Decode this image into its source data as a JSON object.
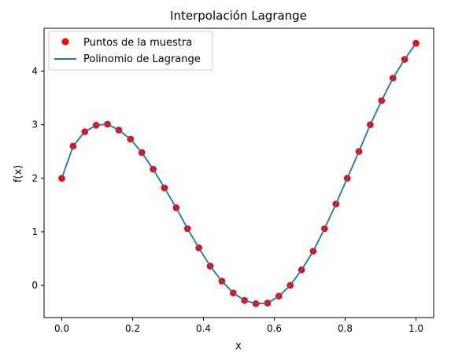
{
  "chart_data": {
    "type": "line",
    "title": "Interpolación Lagrange",
    "xlabel": "x",
    "ylabel": "f(x)",
    "xlim": [
      -0.05,
      1.05
    ],
    "ylim": [
      -0.6,
      4.8
    ],
    "xticks": [
      0.0,
      0.2,
      0.4,
      0.6,
      0.8,
      1.0
    ],
    "xtick_labels": [
      "0.0",
      "0.2",
      "0.4",
      "0.6",
      "0.8",
      "1.0"
    ],
    "yticks": [
      0,
      1,
      2,
      3,
      4
    ],
    "ytick_labels": [
      "0",
      "1",
      "2",
      "3",
      "4"
    ],
    "grid": false,
    "legend_position": "top-left",
    "legend": [
      "Puntos de la muestra",
      "Polinomio de Lagrange"
    ],
    "series": [
      {
        "name": "Puntos de la muestra",
        "kind": "scatter",
        "color": "#ff0000",
        "x": [
          0.0,
          0.032,
          0.065,
          0.097,
          0.129,
          0.161,
          0.194,
          0.226,
          0.258,
          0.29,
          0.323,
          0.355,
          0.387,
          0.419,
          0.452,
          0.484,
          0.516,
          0.548,
          0.581,
          0.613,
          0.645,
          0.677,
          0.71,
          0.742,
          0.774,
          0.806,
          0.839,
          0.871,
          0.903,
          0.935,
          0.968,
          1.0
        ],
        "y": [
          2.0,
          2.6,
          2.87,
          2.99,
          3.01,
          2.9,
          2.73,
          2.48,
          2.17,
          1.82,
          1.45,
          1.06,
          0.7,
          0.36,
          0.08,
          -0.14,
          -0.28,
          -0.34,
          -0.33,
          -0.2,
          0.0,
          0.29,
          0.64,
          1.06,
          1.52,
          2.0,
          2.5,
          3.0,
          3.45,
          3.87,
          4.22,
          4.52
        ]
      },
      {
        "name": "Polinomio de Lagrange",
        "kind": "line",
        "color": "#1f77b4",
        "x": [
          0.0,
          0.032,
          0.065,
          0.097,
          0.129,
          0.161,
          0.194,
          0.226,
          0.258,
          0.29,
          0.323,
          0.355,
          0.387,
          0.419,
          0.452,
          0.484,
          0.516,
          0.548,
          0.581,
          0.613,
          0.645,
          0.677,
          0.71,
          0.742,
          0.774,
          0.806,
          0.839,
          0.871,
          0.903,
          0.935,
          0.968,
          1.0
        ],
        "y": [
          2.0,
          2.6,
          2.87,
          2.99,
          3.01,
          2.9,
          2.73,
          2.48,
          2.17,
          1.82,
          1.45,
          1.06,
          0.7,
          0.36,
          0.08,
          -0.14,
          -0.28,
          -0.34,
          -0.33,
          -0.2,
          0.0,
          0.29,
          0.64,
          1.06,
          1.52,
          2.0,
          2.5,
          3.0,
          3.45,
          3.87,
          4.22,
          4.52
        ]
      }
    ]
  }
}
